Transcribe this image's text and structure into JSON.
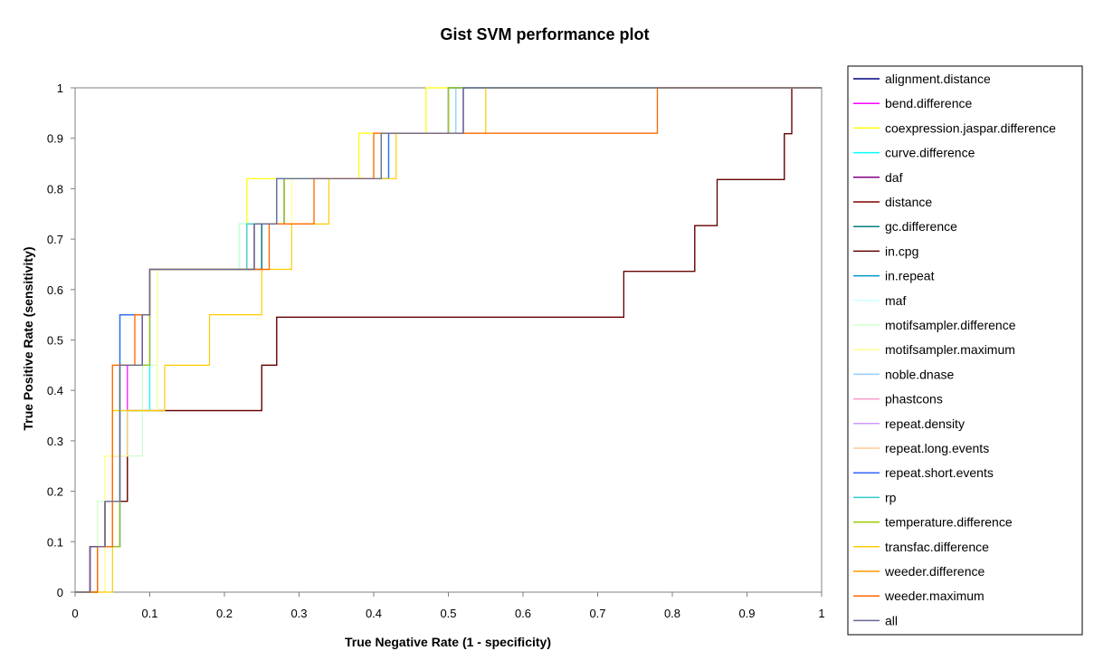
{
  "chart_data": {
    "type": "line",
    "title": "Gist SVM performance plot",
    "xlabel": "True Negative Rate (1 - specificity)",
    "ylabel": "True Positive Rate (sensitivity)",
    "xlim": [
      0,
      1
    ],
    "ylim": [
      0,
      1
    ],
    "xticks": [
      "0",
      "0.1",
      "0.2",
      "0.3",
      "0.4",
      "0.5",
      "0.6",
      "0.7",
      "0.8",
      "0.9",
      "1"
    ],
    "yticks": [
      "0",
      "0.1",
      "0.2",
      "0.3",
      "0.4",
      "0.5",
      "0.6",
      "0.7",
      "0.8",
      "0.9",
      "1"
    ],
    "grid": false,
    "legend_position": "right",
    "series": [
      {
        "name": "alignment.distance",
        "color": "#000080",
        "x": [
          0,
          0.02,
          0.02,
          0.04,
          0.04,
          0.06,
          0.06,
          0.09,
          0.09,
          0.1,
          0.1,
          0.25,
          0.25,
          0.28,
          0.28,
          0.42,
          0.42,
          0.49,
          0.49,
          0.52,
          0.52,
          1
        ],
        "y": [
          0,
          0,
          0.09,
          0.09,
          0.18,
          0.18,
          0.45,
          0.45,
          0.55,
          0.55,
          0.64,
          0.64,
          0.73,
          0.73,
          0.82,
          0.82,
          0.91,
          0.91,
          0.91,
          0.91,
          1,
          1
        ]
      },
      {
        "name": "bend.difference",
        "color": "#ff00ff",
        "x": [
          0,
          0.02,
          0.02,
          0.05,
          0.05,
          0.07,
          0.07,
          0.1,
          0.1,
          0.24,
          0.24,
          0.27,
          0.27,
          0.41,
          0.41,
          0.5,
          0.5,
          1
        ],
        "y": [
          0,
          0,
          0.09,
          0.09,
          0.27,
          0.27,
          0.45,
          0.45,
          0.64,
          0.64,
          0.73,
          0.73,
          0.82,
          0.82,
          0.91,
          0.91,
          1,
          1
        ]
      },
      {
        "name": "coexpression.jaspar.difference",
        "color": "#ffff00",
        "x": [
          0,
          0.04,
          0.04,
          0.05,
          0.05,
          0.11,
          0.11,
          0.23,
          0.23,
          0.24,
          0.24,
          0.38,
          0.38,
          0.47,
          0.47,
          1
        ],
        "y": [
          0,
          0,
          0.27,
          0.27,
          0.36,
          0.36,
          0.64,
          0.64,
          0.82,
          0.82,
          0.82,
          0.82,
          0.91,
          0.91,
          1,
          1
        ]
      },
      {
        "name": "curve.difference",
        "color": "#00ffff",
        "x": [
          0,
          0.03,
          0.03,
          0.06,
          0.06,
          0.1,
          0.1,
          0.22,
          0.22,
          0.27,
          0.27,
          0.42,
          0.42,
          0.51,
          0.51,
          1
        ],
        "y": [
          0,
          0,
          0.09,
          0.09,
          0.36,
          0.36,
          0.64,
          0.64,
          0.73,
          0.73,
          0.82,
          0.82,
          0.91,
          0.91,
          1,
          1
        ]
      },
      {
        "name": "daf",
        "color": "#800080",
        "x": [
          0,
          0.02,
          0.02,
          0.04,
          0.04,
          0.06,
          0.06,
          0.09,
          0.09,
          0.1,
          0.1,
          0.24,
          0.24,
          0.28,
          0.28,
          0.41,
          0.41,
          0.52,
          0.52,
          1
        ],
        "y": [
          0,
          0,
          0.09,
          0.09,
          0.18,
          0.18,
          0.45,
          0.45,
          0.55,
          0.55,
          0.64,
          0.64,
          0.73,
          0.73,
          0.82,
          0.82,
          0.91,
          0.91,
          1,
          1
        ]
      },
      {
        "name": "distance",
        "color": "#800000",
        "x": [
          0,
          0.02,
          0.02,
          0.04,
          0.04,
          0.07,
          0.07,
          0.12,
          0.12,
          0.25,
          0.25,
          0.27,
          0.27,
          0.735,
          0.735,
          0.83,
          0.83,
          0.86,
          0.86,
          0.95,
          0.95,
          0.96,
          0.96,
          1
        ],
        "y": [
          0,
          0,
          0.09,
          0.09,
          0.18,
          0.18,
          0.36,
          0.36,
          0.36,
          0.36,
          0.45,
          0.45,
          0.545,
          0.545,
          0.636,
          0.636,
          0.727,
          0.727,
          0.818,
          0.818,
          0.909,
          0.909,
          1,
          1
        ]
      },
      {
        "name": "gc.difference",
        "color": "#008080",
        "x": [
          0,
          0.03,
          0.03,
          0.06,
          0.06,
          0.1,
          0.1,
          0.25,
          0.25,
          0.28,
          0.28,
          0.41,
          0.41,
          0.5,
          0.5,
          1
        ],
        "y": [
          0,
          0,
          0.09,
          0.09,
          0.55,
          0.55,
          0.64,
          0.64,
          0.73,
          0.73,
          0.82,
          0.82,
          0.91,
          0.91,
          1,
          1
        ]
      },
      {
        "name": "in.cpg",
        "color": "#600000",
        "x": [
          0,
          0.02,
          0.02,
          0.04,
          0.04,
          0.07,
          0.07,
          0.12,
          0.12,
          0.25,
          0.25,
          0.27,
          0.27,
          0.735,
          0.735,
          0.83,
          0.83,
          0.86,
          0.86,
          0.95,
          0.95,
          0.96,
          0.96,
          1
        ],
        "y": [
          0,
          0,
          0.09,
          0.09,
          0.18,
          0.18,
          0.36,
          0.36,
          0.36,
          0.36,
          0.45,
          0.45,
          0.545,
          0.545,
          0.636,
          0.636,
          0.727,
          0.727,
          0.818,
          0.818,
          0.909,
          0.909,
          1,
          1
        ]
      },
      {
        "name": "in.repeat",
        "color": "#0099cc",
        "x": [
          0,
          0.03,
          0.03,
          0.06,
          0.06,
          0.1,
          0.1,
          0.23,
          0.23,
          0.27,
          0.27,
          0.41,
          0.41,
          0.5,
          0.5,
          1
        ],
        "y": [
          0,
          0,
          0.09,
          0.09,
          0.55,
          0.55,
          0.64,
          0.64,
          0.73,
          0.73,
          0.82,
          0.82,
          0.91,
          0.91,
          1,
          1
        ]
      },
      {
        "name": "maf",
        "color": "#ccffff",
        "x": [
          0,
          0.03,
          0.03,
          0.06,
          0.06,
          0.11,
          0.11,
          0.23,
          0.23,
          0.28,
          0.28,
          0.42,
          0.42,
          0.51,
          0.51,
          1
        ],
        "y": [
          0,
          0,
          0.09,
          0.09,
          0.36,
          0.36,
          0.64,
          0.64,
          0.73,
          0.73,
          0.82,
          0.82,
          0.91,
          0.91,
          1,
          1
        ]
      },
      {
        "name": "motifsampler.difference",
        "color": "#ccffcc",
        "x": [
          0,
          0.03,
          0.03,
          0.06,
          0.06,
          0.09,
          0.09,
          0.11,
          0.11,
          0.22,
          0.22,
          0.28,
          0.28,
          0.41,
          0.41,
          0.55,
          0.55,
          1
        ],
        "y": [
          0,
          0,
          0.18,
          0.18,
          0.27,
          0.27,
          0.45,
          0.45,
          0.64,
          0.64,
          0.73,
          0.73,
          0.82,
          0.82,
          0.91,
          0.91,
          1,
          1
        ]
      },
      {
        "name": "motifsampler.maximum",
        "color": "#ffff99",
        "x": [
          0,
          0.04,
          0.04,
          0.07,
          0.07,
          0.11,
          0.11,
          0.23,
          0.23,
          0.29,
          0.29,
          0.4,
          0.4,
          0.5,
          0.5,
          1
        ],
        "y": [
          0,
          0,
          0.27,
          0.27,
          0.36,
          0.36,
          0.64,
          0.64,
          0.73,
          0.73,
          0.82,
          0.82,
          0.91,
          0.91,
          1,
          1
        ]
      },
      {
        "name": "noble.dnase",
        "color": "#99ccff",
        "x": [
          0,
          0.03,
          0.03,
          0.06,
          0.06,
          0.1,
          0.1,
          0.23,
          0.23,
          0.27,
          0.27,
          0.41,
          0.41,
          0.51,
          0.51,
          1
        ],
        "y": [
          0,
          0,
          0.09,
          0.09,
          0.45,
          0.45,
          0.64,
          0.64,
          0.73,
          0.73,
          0.82,
          0.82,
          0.91,
          0.91,
          1,
          1
        ]
      },
      {
        "name": "phastcons",
        "color": "#ff99cc",
        "x": [
          0,
          0.03,
          0.03,
          0.06,
          0.06,
          0.1,
          0.1,
          0.24,
          0.24,
          0.27,
          0.27,
          0.41,
          0.41,
          0.5,
          0.5,
          1
        ],
        "y": [
          0,
          0,
          0.09,
          0.09,
          0.45,
          0.45,
          0.64,
          0.64,
          0.73,
          0.73,
          0.82,
          0.82,
          0.91,
          0.91,
          1,
          1
        ]
      },
      {
        "name": "repeat.density",
        "color": "#cc99ff",
        "x": [
          0,
          0.03,
          0.03,
          0.06,
          0.06,
          0.1,
          0.1,
          0.24,
          0.24,
          0.27,
          0.27,
          0.41,
          0.41,
          0.5,
          0.5,
          1
        ],
        "y": [
          0,
          0,
          0.09,
          0.09,
          0.45,
          0.45,
          0.64,
          0.64,
          0.73,
          0.73,
          0.82,
          0.82,
          0.91,
          0.91,
          1,
          1
        ]
      },
      {
        "name": "repeat.long.events",
        "color": "#ffcc99",
        "x": [
          0,
          0.03,
          0.03,
          0.06,
          0.06,
          0.1,
          0.1,
          0.24,
          0.24,
          0.27,
          0.27,
          0.41,
          0.41,
          0.5,
          0.5,
          1
        ],
        "y": [
          0,
          0,
          0.09,
          0.09,
          0.45,
          0.45,
          0.64,
          0.64,
          0.73,
          0.73,
          0.82,
          0.82,
          0.91,
          0.91,
          1,
          1
        ]
      },
      {
        "name": "repeat.short.events",
        "color": "#3366ff",
        "x": [
          0,
          0.03,
          0.03,
          0.06,
          0.06,
          0.1,
          0.1,
          0.24,
          0.24,
          0.27,
          0.27,
          0.42,
          0.42,
          0.5,
          0.5,
          1
        ],
        "y": [
          0,
          0,
          0.09,
          0.09,
          0.55,
          0.55,
          0.64,
          0.64,
          0.73,
          0.73,
          0.82,
          0.82,
          0.91,
          0.91,
          1,
          1
        ]
      },
      {
        "name": "rp",
        "color": "#33cccc",
        "x": [
          0,
          0.03,
          0.03,
          0.06,
          0.06,
          0.1,
          0.1,
          0.23,
          0.23,
          0.27,
          0.27,
          0.41,
          0.41,
          0.5,
          0.5,
          1
        ],
        "y": [
          0,
          0,
          0.09,
          0.09,
          0.45,
          0.45,
          0.64,
          0.64,
          0.73,
          0.73,
          0.82,
          0.82,
          0.91,
          0.91,
          1,
          1
        ]
      },
      {
        "name": "temperature.difference",
        "color": "#99cc00",
        "x": [
          0,
          0.03,
          0.03,
          0.06,
          0.06,
          0.1,
          0.1,
          0.24,
          0.24,
          0.28,
          0.28,
          0.41,
          0.41,
          0.5,
          0.5,
          1
        ],
        "y": [
          0,
          0,
          0.09,
          0.09,
          0.45,
          0.45,
          0.64,
          0.64,
          0.73,
          0.73,
          0.82,
          0.82,
          0.91,
          0.91,
          1,
          1
        ]
      },
      {
        "name": "transfac.difference",
        "color": "#ffcc00",
        "x": [
          0,
          0.05,
          0.05,
          0.12,
          0.12,
          0.18,
          0.18,
          0.25,
          0.25,
          0.29,
          0.29,
          0.34,
          0.34,
          0.43,
          0.43,
          0.47,
          0.47,
          0.55,
          0.55,
          1
        ],
        "y": [
          0,
          0,
          0.36,
          0.36,
          0.45,
          0.45,
          0.55,
          0.55,
          0.64,
          0.64,
          0.73,
          0.73,
          0.82,
          0.82,
          0.91,
          0.91,
          0.91,
          0.91,
          1,
          1
        ]
      },
      {
        "name": "weeder.difference",
        "color": "#ff9900",
        "x": [
          0,
          0.03,
          0.03,
          0.05,
          0.05,
          0.08,
          0.08,
          0.1,
          0.1,
          0.26,
          0.26,
          0.32,
          0.32,
          0.4,
          0.4,
          0.78,
          0.78,
          1
        ],
        "y": [
          0,
          0,
          0.09,
          0.09,
          0.45,
          0.45,
          0.55,
          0.55,
          0.64,
          0.64,
          0.73,
          0.73,
          0.82,
          0.82,
          0.91,
          0.91,
          1,
          1
        ]
      },
      {
        "name": "weeder.maximum",
        "color": "#ff6600",
        "x": [
          0,
          0.03,
          0.03,
          0.05,
          0.05,
          0.08,
          0.08,
          0.1,
          0.1,
          0.26,
          0.26,
          0.32,
          0.32,
          0.4,
          0.4,
          0.78,
          0.78,
          1
        ],
        "y": [
          0,
          0,
          0.09,
          0.09,
          0.45,
          0.45,
          0.55,
          0.55,
          0.64,
          0.64,
          0.73,
          0.73,
          0.82,
          0.82,
          0.91,
          0.91,
          1,
          1
        ]
      },
      {
        "name": "all",
        "color": "#666699",
        "x": [
          0,
          0.02,
          0.02,
          0.04,
          0.04,
          0.06,
          0.06,
          0.09,
          0.09,
          0.1,
          0.1,
          0.24,
          0.24,
          0.27,
          0.27,
          0.41,
          0.41,
          0.52,
          0.52,
          1
        ],
        "y": [
          0,
          0,
          0.09,
          0.09,
          0.18,
          0.18,
          0.45,
          0.45,
          0.55,
          0.55,
          0.64,
          0.64,
          0.73,
          0.73,
          0.82,
          0.82,
          0.91,
          0.91,
          1,
          1
        ]
      }
    ]
  }
}
